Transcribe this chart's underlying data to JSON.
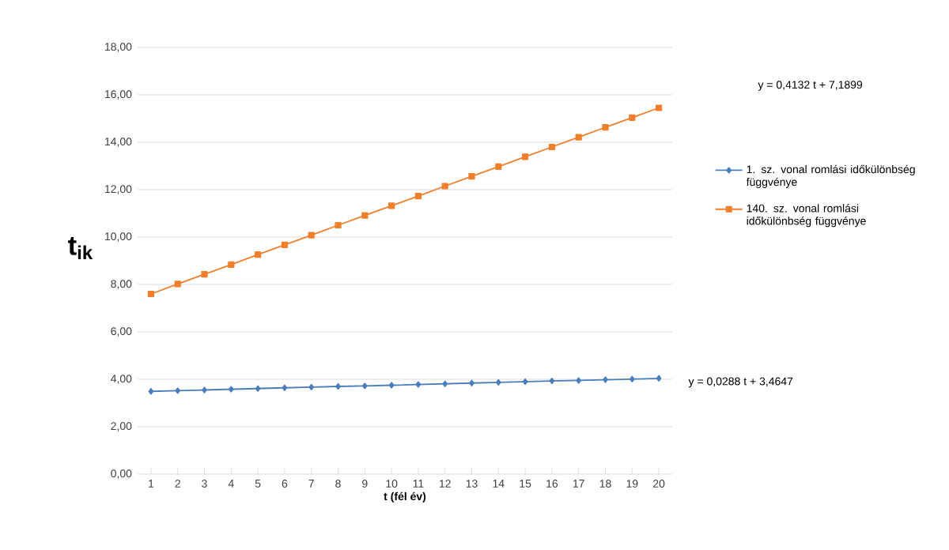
{
  "chart_data": {
    "type": "line",
    "xlabel": "t (fél év)",
    "ylabel": "t$_{ik}$",
    "x": [
      1,
      2,
      3,
      4,
      5,
      6,
      7,
      8,
      9,
      10,
      11,
      12,
      13,
      14,
      15,
      16,
      17,
      18,
      19,
      20
    ],
    "xlim": [
      0.5,
      20.5
    ],
    "xticks": [
      1,
      2,
      3,
      4,
      5,
      6,
      7,
      8,
      9,
      10,
      11,
      12,
      13,
      14,
      15,
      16,
      17,
      18,
      19,
      20
    ],
    "ylim": [
      0,
      18
    ],
    "yticks": [
      {
        "value": 0,
        "label": "0,00"
      },
      {
        "value": 2,
        "label": "2,00"
      },
      {
        "value": 4,
        "label": "4,00"
      },
      {
        "value": 6,
        "label": "6,00"
      },
      {
        "value": 8,
        "label": "8,00"
      },
      {
        "value": 10,
        "label": "10,00"
      },
      {
        "value": 12,
        "label": "12,00"
      },
      {
        "value": 14,
        "label": "14,00"
      },
      {
        "value": 16,
        "label": "16,00"
      },
      {
        "value": 18,
        "label": "18,00"
      }
    ],
    "grid": "y",
    "legend": "right",
    "line_style": "solid",
    "series": [
      {
        "name": "1. sz. vonal romlási időkülönbség függvénye",
        "color": "#4a7ebb",
        "marker": "diamond",
        "values": [
          3.49,
          3.52,
          3.55,
          3.58,
          3.61,
          3.64,
          3.67,
          3.7,
          3.72,
          3.75,
          3.78,
          3.81,
          3.84,
          3.87,
          3.9,
          3.93,
          3.95,
          3.98,
          4.01,
          4.04
        ]
      },
      {
        "name": "140. sz. vonal romlási időkülönbség függvénye",
        "color": "#f07f2c",
        "marker": "square",
        "values": [
          7.6,
          8.02,
          8.43,
          8.84,
          9.26,
          9.67,
          10.08,
          10.5,
          10.91,
          11.32,
          11.73,
          12.15,
          12.56,
          12.97,
          13.39,
          13.8,
          14.21,
          14.63,
          15.04,
          15.45
        ]
      }
    ],
    "annotations": [
      "y = 0,4132 t + 7,1899",
      "y = 0,0288 t + 3,4647"
    ]
  }
}
